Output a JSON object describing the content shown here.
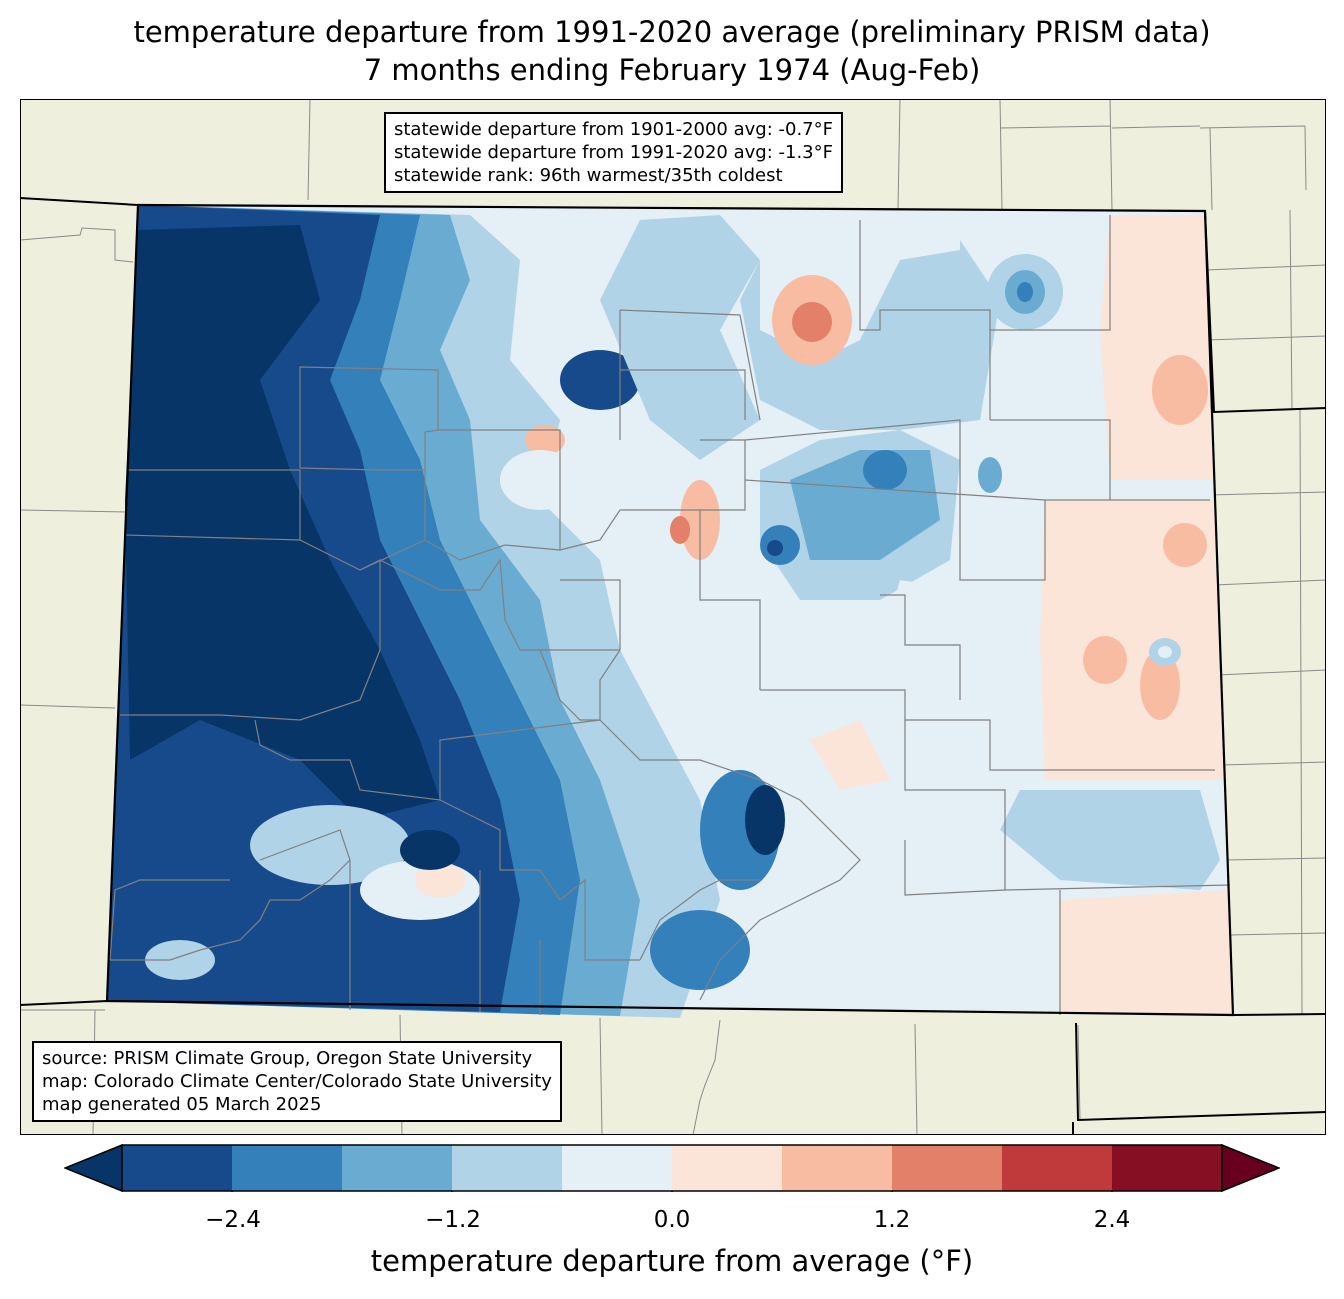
{
  "title": {
    "line1": "temperature departure from 1991-2020 average (preliminary PRISM data)",
    "line2": "7 months ending February 1974 (Aug-Feb)"
  },
  "stats": {
    "line1": "statewide departure from 1901-2000 avg: -0.7°F",
    "line2": "statewide departure from 1991-2020 avg: -1.3°F",
    "line3": "statewide rank: 96th warmest/35th coldest"
  },
  "source": {
    "line1": "source: PRISM Climate Group, Oregon State University",
    "line2": "map: Colorado Climate Center/Colorado State University",
    "line3": "map generated 05 March 2025"
  },
  "colorbar": {
    "label": "temperature departure from average (°F)",
    "ticks": [
      "−2.4",
      "−1.2",
      "0.0",
      "1.2",
      "2.4"
    ],
    "bins": [
      -3.0,
      -2.4,
      -1.8,
      -1.2,
      -0.6,
      0.0,
      0.6,
      1.2,
      1.8,
      2.4,
      3.0
    ],
    "colors": [
      "#174a8b",
      "#3480bb",
      "#6aacd1",
      "#b0d3e7",
      "#e5eff6",
      "#fbe4d8",
      "#f8bca2",
      "#e2806a",
      "#c03a3c",
      "#870f24"
    ],
    "under_color": "#083567",
    "over_color": "#67001f"
  },
  "colors": {
    "land": "#efefdd",
    "border": "#000000",
    "county": "#808080"
  }
}
